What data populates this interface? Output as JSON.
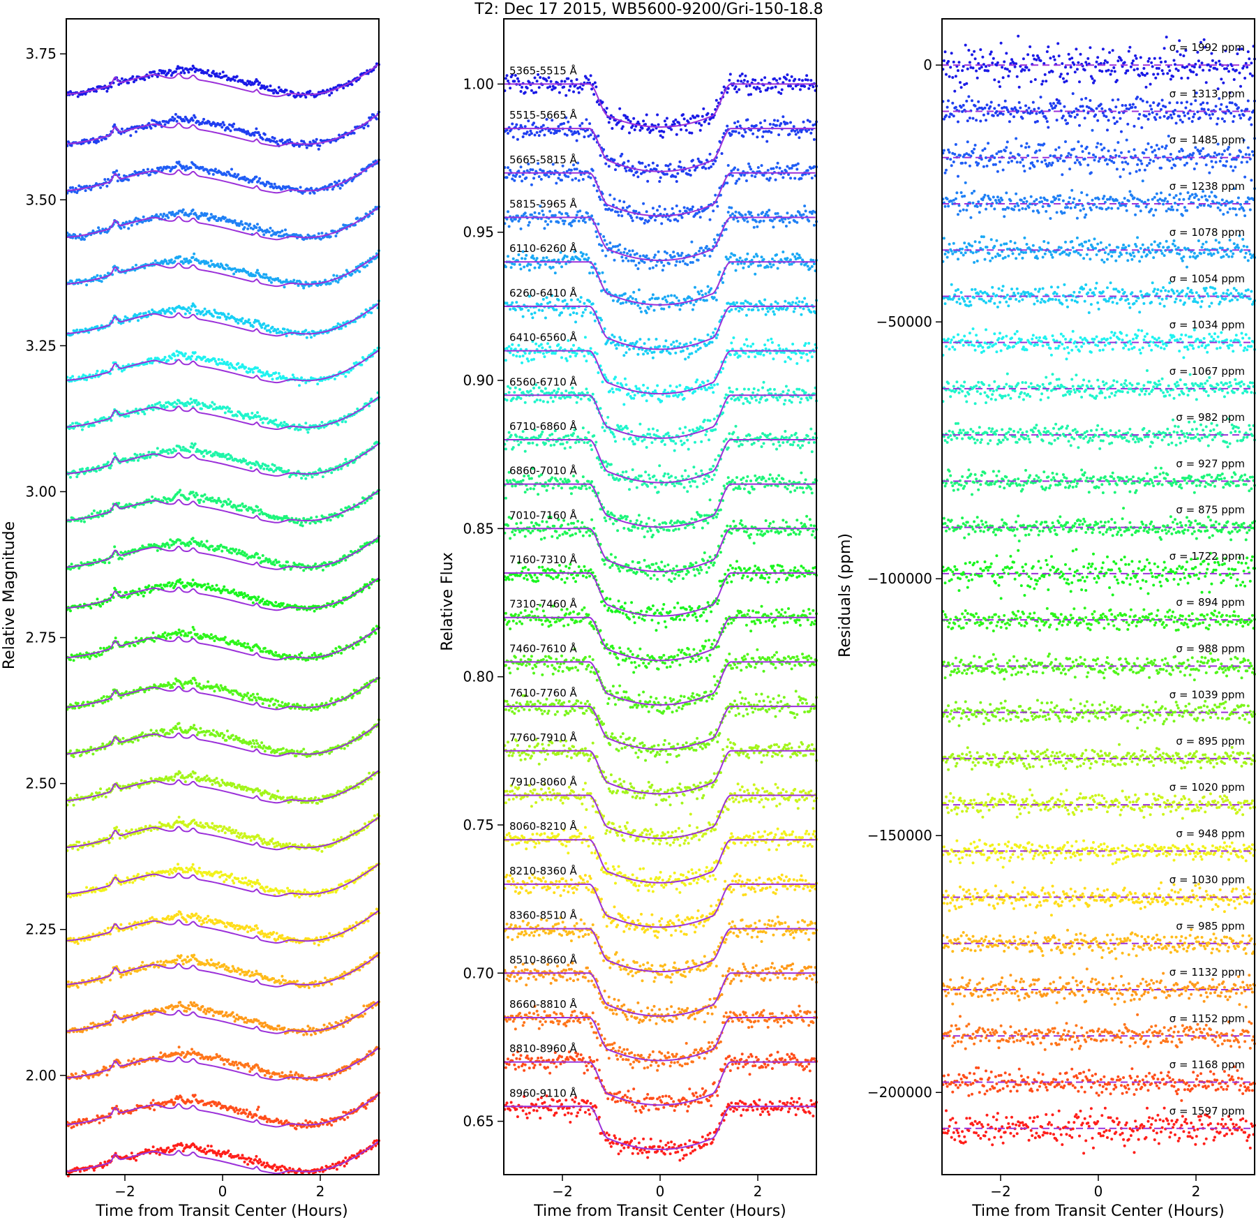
{
  "title": "T2: Dec 17 2015, WB5600-9200/Gri-150-18.8",
  "model_color": "#9b30d9",
  "bands": [
    "5365-5515 Å",
    "5515-5665 Å",
    "5665-5815 Å",
    "5815-5965 Å",
    "6110-6260 Å",
    "6260-6410 Å",
    "6410-6560 Å",
    "6560-6710 Å",
    "6710-6860 Å",
    "6860-7010 Å",
    "7010-7160 Å",
    "7160-7310 Å",
    "7310-7460 Å",
    "7460-7610 Å",
    "7610-7760 Å",
    "7760-7910 Å",
    "7910-8060 Å",
    "8060-8210 Å",
    "8210-8360 Å",
    "8360-8510 Å",
    "8510-8660 Å",
    "8660-8810 Å",
    "8810-8960 Å",
    "8960-9110 Å"
  ],
  "band_colors": [
    "#1a1ae6",
    "#1f3ef0",
    "#1f5df5",
    "#1f80f5",
    "#1aa8f5",
    "#19d0f5",
    "#1ff2f0",
    "#1ff5cc",
    "#1ff5a8",
    "#1cf57a",
    "#1cf552",
    "#19f51f",
    "#2df51a",
    "#52f51a",
    "#7af51a",
    "#a3f51a",
    "#ccf51a",
    "#f2f21a",
    "#ffdd1a",
    "#ffbb1a",
    "#ff9a1a",
    "#ff751a",
    "#ff4d1a",
    "#ff1f1a"
  ],
  "sigmas": [
    "σ = 1992 ppm",
    "σ = 1313 ppm",
    "σ = 1485 ppm",
    "σ = 1238 ppm",
    "σ = 1078 ppm",
    "σ = 1054 ppm",
    "σ = 1034 ppm",
    "σ = 1067 ppm",
    "σ = 982 ppm",
    "σ = 927 ppm",
    "σ = 875 ppm",
    "σ = 1722 ppm",
    "σ = 894 ppm",
    "σ = 988 ppm",
    "σ = 1039 ppm",
    "σ = 895 ppm",
    "σ = 1020 ppm",
    "σ = 948 ppm",
    "σ = 1030 ppm",
    "σ = 985 ppm",
    "σ = 1132 ppm",
    "σ = 1152 ppm",
    "σ = 1168 ppm",
    "σ = 1597 ppm"
  ],
  "chart_data": [
    {
      "type": "line",
      "panel": "left",
      "xlabel": "Time from Transit Center (Hours)",
      "ylabel": "Relative Magnitude",
      "xlim": [
        -3.2,
        3.2
      ],
      "ylim": [
        1.83,
        3.81
      ],
      "xticks": [
        -2,
        0,
        2
      ],
      "xtick_labels": [
        "−2",
        "0",
        "2"
      ],
      "yticks": [
        2.0,
        2.25,
        2.5,
        2.75,
        3.0,
        3.25,
        3.5,
        3.75
      ],
      "ytick_labels": [
        "2.00",
        "2.25",
        "2.50",
        "2.75",
        "3.00",
        "3.25",
        "3.50",
        "3.75"
      ],
      "series_offsets": [
        3.72,
        3.635,
        3.555,
        3.475,
        3.395,
        3.31,
        3.23,
        3.15,
        3.07,
        2.99,
        2.91,
        2.84,
        2.755,
        2.67,
        2.59,
        2.51,
        2.43,
        2.35,
        2.27,
        2.195,
        2.115,
        2.035,
        1.955,
        1.875
      ]
    },
    {
      "type": "line",
      "panel": "middle",
      "xlabel": "Time from Transit Center (Hours)",
      "ylabel": "Relative Flux",
      "xlim": [
        -3.2,
        3.2
      ],
      "ylim": [
        0.632,
        1.022
      ],
      "xticks": [
        -2,
        0,
        2
      ],
      "xtick_labels": [
        "−2",
        "0",
        "2"
      ],
      "yticks": [
        0.65,
        0.7,
        0.75,
        0.8,
        0.85,
        0.9,
        0.95,
        1.0
      ],
      "ytick_labels": [
        "0.65",
        "0.70",
        "0.75",
        "0.80",
        "0.85",
        "0.90",
        "0.95",
        "1.00"
      ],
      "baselines": [
        1.0,
        0.985,
        0.97,
        0.955,
        0.94,
        0.925,
        0.91,
        0.895,
        0.88,
        0.865,
        0.85,
        0.835,
        0.82,
        0.805,
        0.79,
        0.775,
        0.76,
        0.745,
        0.73,
        0.715,
        0.7,
        0.685,
        0.67,
        0.655
      ],
      "transit_depth": 0.0145,
      "ingress_hours": [
        -1.45,
        -1.05
      ],
      "egress_hours": [
        1.05,
        1.45
      ]
    },
    {
      "type": "scatter",
      "panel": "right",
      "xlabel": "Time from Transit Center (Hours)",
      "ylabel": "Residuals (ppm)",
      "xlim": [
        -3.2,
        3.2
      ],
      "ylim": [
        -216000,
        9000
      ],
      "xticks": [
        -2,
        0,
        2
      ],
      "xtick_labels": [
        "−2",
        "0",
        "2"
      ],
      "yticks": [
        0,
        -50000,
        -100000,
        -150000,
        -200000
      ],
      "ytick_labels": [
        "0",
        "−50000",
        "−100000",
        "−150000",
        "−200000"
      ],
      "offsets": [
        0,
        -9000,
        -18000,
        -27000,
        -36000,
        -45000,
        -54000,
        -63000,
        -72000,
        -81000,
        -90000,
        -99000,
        -108000,
        -117000,
        -126000,
        -135000,
        -144000,
        -153000,
        -162000,
        -171000,
        -180000,
        -189000,
        -198000,
        -207000
      ]
    }
  ]
}
